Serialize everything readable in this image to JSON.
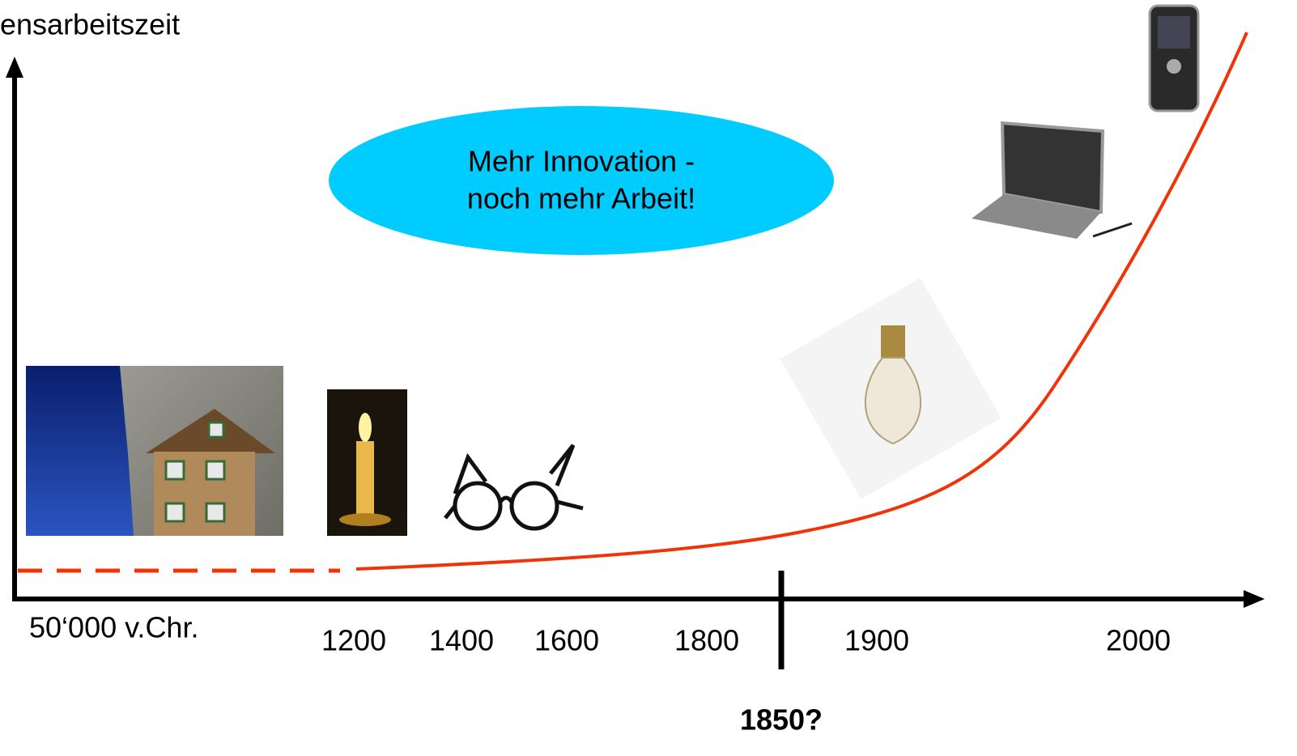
{
  "axis": {
    "y_label": "ensarbeitszeit",
    "x_labels": [
      "50‘000 v.Chr.",
      "1200",
      "1400",
      "1600",
      "1800",
      "1900",
      "2000"
    ],
    "marker_label": "1850?"
  },
  "bubble": {
    "lines": [
      "Mehr Innovation -",
      "noch mehr Arbeit!"
    ]
  }
}
